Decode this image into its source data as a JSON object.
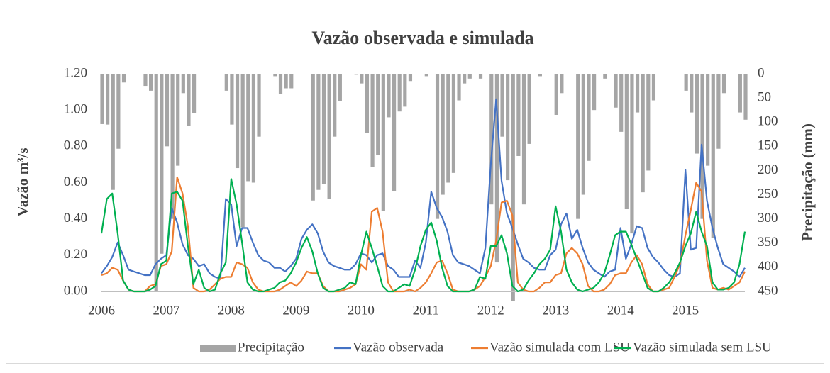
{
  "chart_data": {
    "type": "combo",
    "title": "Vazão observada e simulada",
    "y_label": "Vazão m³/s",
    "y2_label": "Precipitação (mm)",
    "categories": [
      "2006",
      null,
      null,
      null,
      null,
      null,
      null,
      null,
      null,
      null,
      null,
      null,
      "2007",
      null,
      null,
      null,
      null,
      null,
      null,
      null,
      null,
      null,
      null,
      null,
      "2008",
      null,
      null,
      null,
      null,
      null,
      null,
      null,
      null,
      null,
      null,
      null,
      "2009",
      null,
      null,
      null,
      null,
      null,
      null,
      null,
      null,
      null,
      null,
      null,
      "2010",
      null,
      null,
      null,
      null,
      null,
      null,
      null,
      null,
      null,
      null,
      null,
      "2011",
      null,
      null,
      null,
      null,
      null,
      null,
      null,
      null,
      null,
      null,
      null,
      "2012",
      null,
      null,
      null,
      null,
      null,
      null,
      null,
      null,
      null,
      null,
      null,
      "2013",
      null,
      null,
      null,
      null,
      null,
      null,
      null,
      null,
      null,
      null,
      null,
      "2014",
      null,
      null,
      null,
      null,
      null,
      null,
      null,
      null,
      null,
      null,
      null,
      "2015",
      null,
      null,
      null,
      null,
      null,
      null,
      null,
      null,
      null,
      null,
      null
    ],
    "ylim": [
      0,
      1.2
    ],
    "yticks": [
      {
        "value": 0,
        "label": "0.00"
      },
      {
        "value": 0.2,
        "label": "0.20"
      },
      {
        "value": 0.4,
        "label": "0.40"
      },
      {
        "value": 0.6,
        "label": "0.60"
      },
      {
        "value": 0.8,
        "label": "0.80"
      },
      {
        "value": 1.0,
        "label": "1.00"
      },
      {
        "value": 1.2,
        "label": "1.20"
      }
    ],
    "y2lim": [
      0,
      450
    ],
    "y2ticks": [
      0,
      50,
      100,
      150,
      200,
      250,
      300,
      350,
      400,
      450
    ],
    "y2_inverted": true,
    "grid": false,
    "legend": "bottom",
    "series": [
      {
        "name": "Precipitação",
        "type": "bar",
        "axis": "y2",
        "color": "#a5a5a5",
        "values": [
          104,
          105,
          240,
          155,
          18,
          0,
          0,
          0,
          25,
          35,
          450,
          372,
          150,
          300,
          190,
          40,
          108,
          82,
          0,
          0,
          0,
          0,
          0,
          35,
          105,
          195,
          317,
          222,
          225,
          130,
          0,
          0,
          5,
          42,
          30,
          30,
          0,
          0,
          0,
          262,
          240,
          228,
          259,
          130,
          57,
          0,
          0,
          2,
          20,
          123,
          193,
          168,
          283,
          90,
          243,
          78,
          68,
          15,
          0,
          0,
          5,
          0,
          300,
          250,
          225,
          205,
          55,
          20,
          10,
          0,
          10,
          0,
          270,
          390,
          130,
          220,
          470,
          170,
          270,
          145,
          0,
          5,
          0,
          0,
          85,
          40,
          0,
          0,
          300,
          250,
          180,
          75,
          0,
          10,
          0,
          70,
          120,
          280,
          330,
          80,
          245,
          200,
          55,
          0,
          0,
          0,
          0,
          0,
          35,
          80,
          165,
          300,
          190,
          340,
          155,
          40,
          0,
          0,
          80,
          95
        ]
      },
      {
        "name": "Vazão observada",
        "type": "line",
        "color": "#4472c4",
        "values": [
          0.1,
          0.14,
          0.19,
          0.27,
          0.2,
          0.12,
          0.11,
          0.1,
          0.09,
          0.09,
          0.15,
          0.18,
          0.2,
          0.46,
          0.38,
          0.26,
          0.2,
          0.18,
          0.14,
          0.15,
          0.1,
          0.08,
          0.07,
          0.51,
          0.48,
          0.25,
          0.35,
          0.35,
          0.27,
          0.2,
          0.17,
          0.16,
          0.13,
          0.13,
          0.11,
          0.14,
          0.18,
          0.29,
          0.34,
          0.37,
          0.32,
          0.22,
          0.16,
          0.14,
          0.13,
          0.12,
          0.12,
          0.15,
          0.21,
          0.2,
          0.16,
          0.2,
          0.21,
          0.14,
          0.12,
          0.08,
          0.08,
          0.08,
          0.17,
          0.13,
          0.27,
          0.55,
          0.46,
          0.41,
          0.33,
          0.2,
          0.16,
          0.15,
          0.14,
          0.12,
          0.1,
          0.24,
          0.7,
          1.06,
          0.61,
          0.43,
          0.35,
          0.26,
          0.18,
          0.16,
          0.13,
          0.12,
          0.12,
          0.2,
          0.23,
          0.37,
          0.43,
          0.29,
          0.34,
          0.24,
          0.16,
          0.12,
          0.1,
          0.08,
          0.11,
          0.12,
          0.35,
          0.18,
          0.26,
          0.36,
          0.35,
          0.24,
          0.19,
          0.16,
          0.12,
          0.09,
          0.08,
          0.1,
          0.67,
          0.23,
          0.24,
          0.81,
          0.5,
          0.35,
          0.24,
          0.15,
          0.13,
          0.11,
          0.08,
          0.13
        ]
      },
      {
        "name": "Vazão simulada com LSU",
        "type": "line",
        "color": "#ed7d31",
        "values": [
          0.09,
          0.1,
          0.13,
          0.12,
          0.06,
          0.01,
          0.0,
          0.0,
          0.0,
          0.03,
          0.04,
          0.14,
          0.15,
          0.22,
          0.63,
          0.54,
          0.36,
          0.02,
          0.0,
          0.0,
          0.01,
          0.04,
          0.07,
          0.08,
          0.08,
          0.16,
          0.15,
          0.13,
          0.05,
          0.01,
          0.0,
          0.0,
          0.0,
          0.01,
          0.03,
          0.05,
          0.03,
          0.06,
          0.11,
          0.1,
          0.1,
          0.03,
          0.0,
          0.0,
          0.0,
          0.01,
          0.02,
          0.04,
          0.15,
          0.12,
          0.44,
          0.46,
          0.33,
          0.05,
          0.0,
          0.0,
          0.0,
          0.01,
          0.0,
          0.02,
          0.05,
          0.1,
          0.16,
          0.17,
          0.1,
          0.01,
          0.0,
          0.0,
          0.0,
          0.01,
          0.03,
          0.08,
          0.14,
          0.28,
          0.49,
          0.5,
          0.42,
          0.05,
          0.01,
          0.0,
          0.0,
          0.02,
          0.05,
          0.05,
          0.09,
          0.1,
          0.21,
          0.24,
          0.21,
          0.15,
          0.03,
          0.0,
          0.0,
          0.01,
          0.04,
          0.09,
          0.1,
          0.1,
          0.16,
          0.2,
          0.15,
          0.04,
          0.0,
          0.0,
          0.01,
          0.02,
          0.08,
          0.15,
          0.31,
          0.45,
          0.6,
          0.55,
          0.17,
          0.02,
          0.01,
          0.02,
          0.01,
          0.03,
          0.05,
          0.11
        ]
      },
      {
        "name": "Vazão simulada sem LSU",
        "type": "line",
        "color": "#00b050",
        "values": [
          0.32,
          0.51,
          0.54,
          0.32,
          0.06,
          0.01,
          0.0,
          0.0,
          0.0,
          0.01,
          0.03,
          0.15,
          0.17,
          0.54,
          0.55,
          0.5,
          0.25,
          0.04,
          0.12,
          0.02,
          0.0,
          0.01,
          0.1,
          0.16,
          0.62,
          0.48,
          0.27,
          0.05,
          0.01,
          0.0,
          0.0,
          0.01,
          0.02,
          0.05,
          0.06,
          0.1,
          0.16,
          0.24,
          0.3,
          0.22,
          0.1,
          0.02,
          0.0,
          0.0,
          0.01,
          0.02,
          0.05,
          0.04,
          0.2,
          0.33,
          0.24,
          0.14,
          0.03,
          0.0,
          0.0,
          0.02,
          0.04,
          0.03,
          0.12,
          0.25,
          0.34,
          0.38,
          0.28,
          0.13,
          0.03,
          0.0,
          0.0,
          0.0,
          0.0,
          0.01,
          0.08,
          0.07,
          0.25,
          0.25,
          0.31,
          0.21,
          0.03,
          0.0,
          0.01,
          0.06,
          0.1,
          0.15,
          0.18,
          0.23,
          0.47,
          0.33,
          0.12,
          0.05,
          0.01,
          0.0,
          0.01,
          0.02,
          0.05,
          0.1,
          0.2,
          0.31,
          0.33,
          0.33,
          0.26,
          0.18,
          0.1,
          0.02,
          0.0,
          0.0,
          0.02,
          0.05,
          0.1,
          0.16,
          0.25,
          0.32,
          0.44,
          0.33,
          0.25,
          0.05,
          0.01,
          0.01,
          0.02,
          0.05,
          0.15,
          0.33
        ]
      }
    ]
  }
}
